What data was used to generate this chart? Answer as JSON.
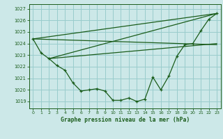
{
  "background_color": "#cce8e8",
  "grid_color": "#99cccc",
  "line_color": "#1a5c1a",
  "title": "Graphe pression niveau de la mer (hPa)",
  "xlim": [
    -0.5,
    23.5
  ],
  "ylim": [
    1018.4,
    1027.4
  ],
  "yticks": [
    1019,
    1020,
    1021,
    1022,
    1023,
    1024,
    1025,
    1026,
    1027
  ],
  "xticks": [
    0,
    1,
    2,
    3,
    4,
    5,
    6,
    7,
    8,
    9,
    10,
    11,
    12,
    13,
    14,
    15,
    16,
    17,
    18,
    19,
    20,
    21,
    22,
    23
  ],
  "main_x": [
    0,
    1,
    2,
    3,
    4,
    5,
    6,
    7,
    8,
    9,
    10,
    11,
    12,
    13,
    14,
    15,
    16,
    17,
    18,
    19,
    20,
    21,
    22,
    23
  ],
  "main_y": [
    1024.4,
    1023.2,
    1022.7,
    1022.1,
    1021.7,
    1020.6,
    1019.9,
    1020.0,
    1020.1,
    1019.9,
    1019.1,
    1019.1,
    1019.3,
    1019.0,
    1019.2,
    1021.1,
    1020.0,
    1021.2,
    1022.9,
    1023.9,
    1024.0,
    1025.1,
    1026.1,
    1026.6
  ],
  "line1_x": [
    0,
    23
  ],
  "line1_y": [
    1024.4,
    1026.6
  ],
  "line2_x": [
    2,
    23
  ],
  "line2_y": [
    1022.7,
    1026.6
  ],
  "line3_x": [
    0,
    23
  ],
  "line3_y": [
    1024.4,
    1023.9
  ],
  "line4_x": [
    2,
    23
  ],
  "line4_y": [
    1022.7,
    1024.0
  ]
}
